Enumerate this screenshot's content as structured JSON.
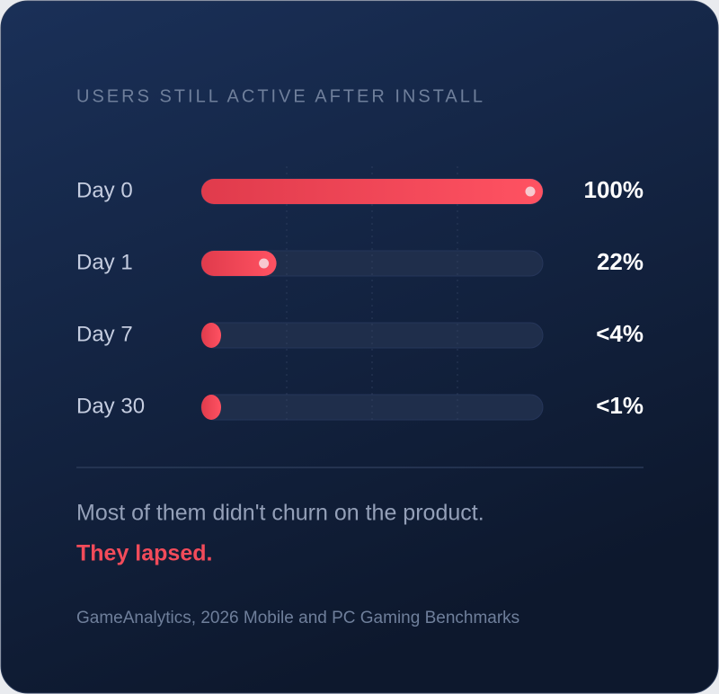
{
  "chart_data": {
    "type": "hbar",
    "title": "USERS STILL ACTIVE AFTER INSTALL",
    "categories": [
      "Day 0",
      "Day 1",
      "Day 7",
      "Day 30"
    ],
    "values": [
      100,
      22,
      4,
      1
    ],
    "value_labels": [
      "100%",
      "22%",
      "<4%",
      "<1%"
    ],
    "color": "#f5485a",
    "xlim": [
      0,
      100
    ],
    "xticks": [
      25,
      50,
      75
    ],
    "grid": true,
    "note": "Most of them didn't churn on the product.",
    "highlight": "They lapsed.",
    "source": "GameAnalytics, 2026 Mobile and PC Gaming Benchmarks"
  }
}
